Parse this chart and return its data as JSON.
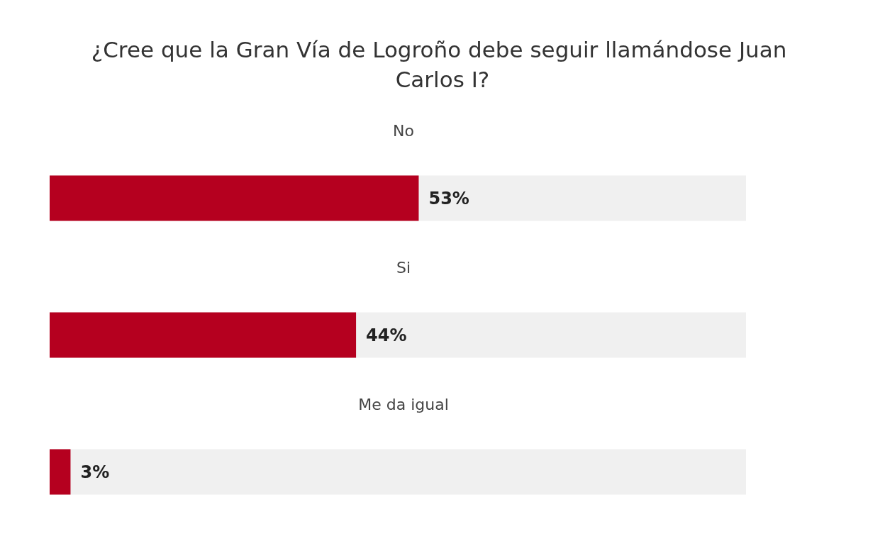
{
  "chart_data": {
    "type": "bar",
    "orientation": "horizontal",
    "title": "¿Cree que la Gran Vía de Logroño debe seguir llamándose Juan Carlos I?",
    "categories": [
      "No",
      "Si",
      "Me da igual"
    ],
    "values": [
      53,
      44,
      3
    ],
    "value_labels": [
      "53%",
      "44%",
      "3%"
    ],
    "color": "#b5001f",
    "tick_labels": "y"
  }
}
